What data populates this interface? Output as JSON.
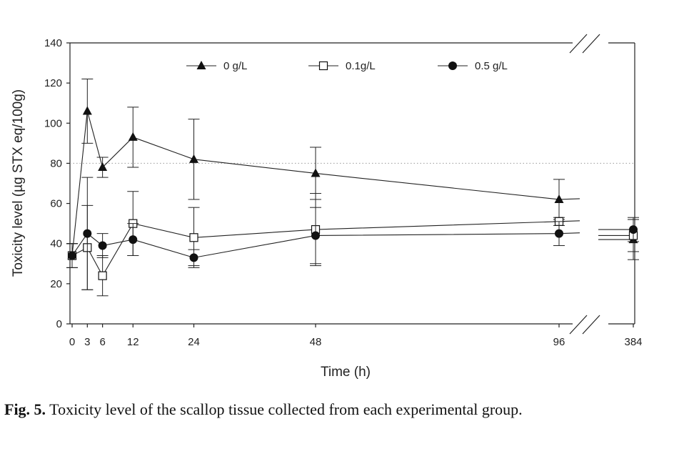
{
  "caption": {
    "label": "Fig. 5.",
    "text": " Toxicity level of the scallop tissue collected from each experimental group."
  },
  "chart_data": {
    "type": "line",
    "title": "",
    "xlabel": "Time (h)",
    "ylabel": "Toxicity level (µg STX eq/100g)",
    "ylim": [
      0,
      140
    ],
    "y_ticks": [
      0,
      20,
      40,
      60,
      80,
      100,
      120,
      140
    ],
    "x_tick_labels": [
      "0",
      "3",
      "6",
      "12",
      "24",
      "48",
      "96",
      "384"
    ],
    "x_axis_break": "between 96 and 384",
    "reference_line": 80,
    "legend_position": "top",
    "grid": false,
    "series": [
      {
        "name": "0 g/L",
        "marker": "filled-triangle",
        "x": [
          0,
          3,
          6,
          12,
          24,
          48,
          96,
          384
        ],
        "y": [
          34,
          106,
          78,
          93,
          82,
          75,
          62,
          42
        ],
        "err": [
          6,
          16,
          5,
          15,
          20,
          13,
          10,
          10
        ]
      },
      {
        "name": "0.1g/L",
        "marker": "open-square",
        "x": [
          0,
          3,
          6,
          12,
          24,
          48,
          96,
          384
        ],
        "y": [
          34,
          38,
          24,
          50,
          43,
          47,
          51,
          44
        ],
        "err": [
          6,
          21,
          10,
          16,
          15,
          18,
          2,
          8
        ]
      },
      {
        "name": "0.5 g/L",
        "marker": "filled-circle",
        "x": [
          0,
          3,
          6,
          12,
          24,
          48,
          96,
          384
        ],
        "y": [
          34,
          45,
          39,
          42,
          33,
          44,
          45,
          47
        ],
        "err": [
          6,
          28,
          6,
          8,
          4,
          14,
          6,
          6
        ]
      }
    ]
  }
}
